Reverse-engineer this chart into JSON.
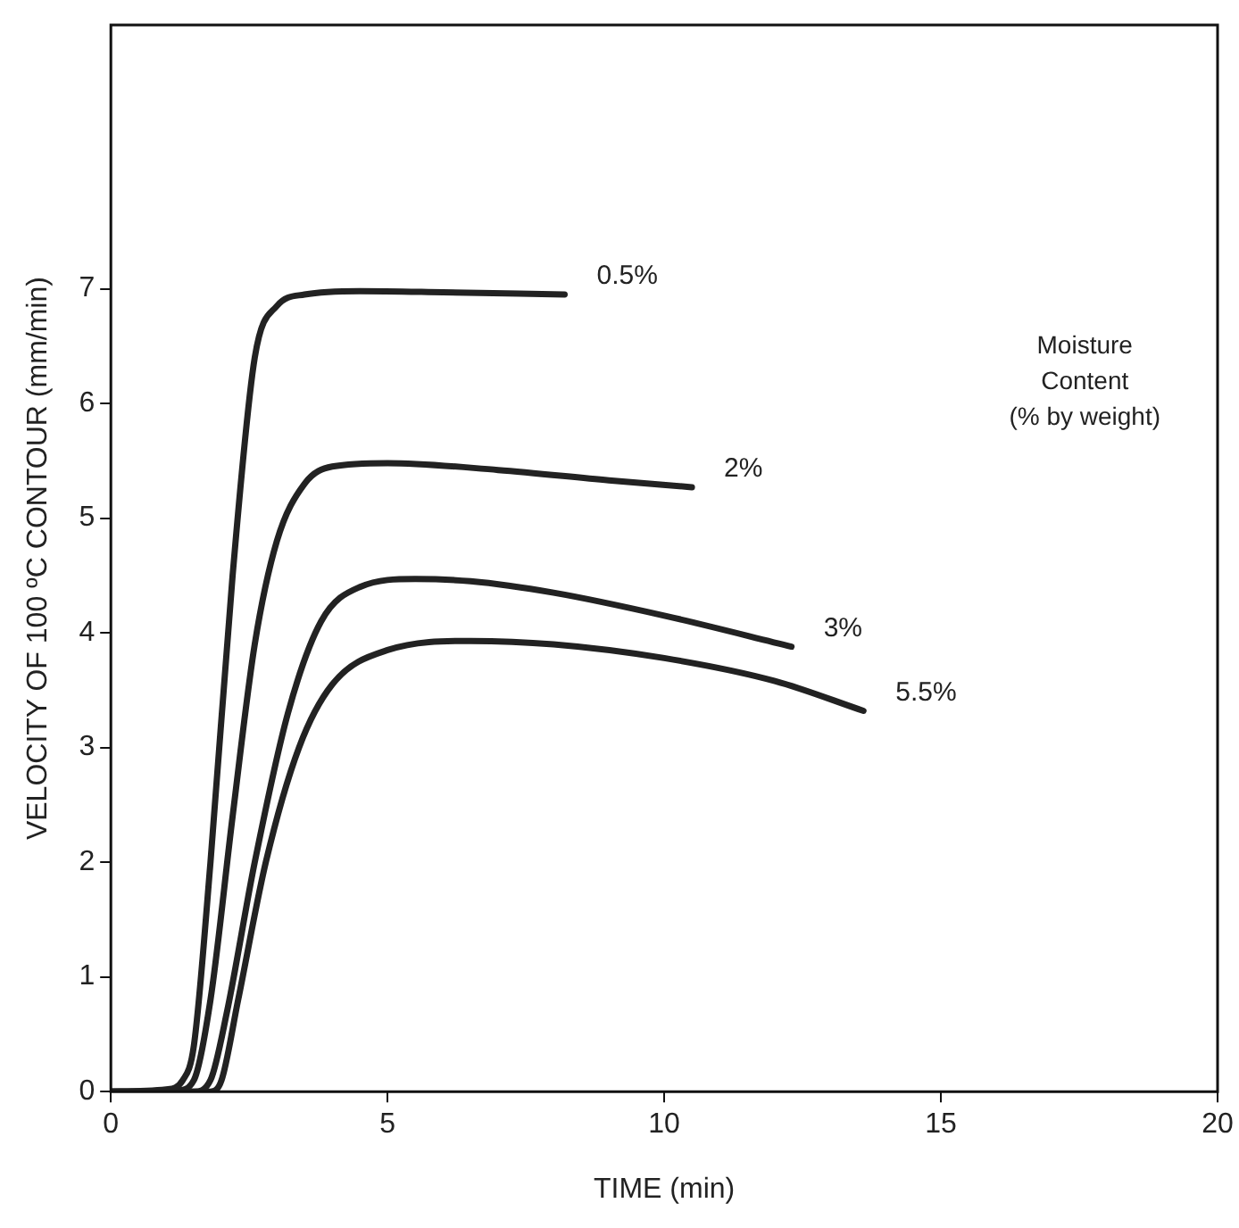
{
  "chart_data": {
    "type": "line",
    "xlabel": "TIME (min)",
    "ylabel": "VELOCITY OF 100 ºC CONTOUR (mm/min)",
    "legend_title": "Moisture\nContent\n(% by weight)",
    "xlim": [
      0,
      20
    ],
    "ylim": [
      0,
      9.3
    ],
    "xticks": [
      0,
      5,
      10,
      15,
      20
    ],
    "yticks": [
      0,
      1,
      2,
      3,
      4,
      5,
      6,
      7
    ],
    "grid": false,
    "legend": false,
    "marker": "none",
    "line_style": "solid",
    "series": [
      {
        "name": "0.5%",
        "color": "#222222",
        "x": [
          0,
          1,
          1.3,
          1.5,
          1.8,
          2.2,
          2.6,
          3,
          3.5,
          4.5,
          6,
          8.2
        ],
        "values": [
          0,
          0.02,
          0.1,
          0.4,
          2,
          4.5,
          6.4,
          6.85,
          6.95,
          6.98,
          6.97,
          6.95
        ]
      },
      {
        "name": "2%",
        "color": "#222222",
        "x": [
          0,
          1.2,
          1.5,
          1.8,
          2.2,
          2.6,
          3,
          3.5,
          4,
          5,
          7,
          9,
          10.5
        ],
        "values": [
          0,
          0.01,
          0.1,
          0.8,
          2.4,
          3.9,
          4.8,
          5.3,
          5.45,
          5.48,
          5.42,
          5.33,
          5.27
        ]
      },
      {
        "name": "3%",
        "color": "#222222",
        "x": [
          0,
          1.5,
          1.8,
          2.1,
          2.6,
          3.2,
          3.8,
          4.5,
          5.5,
          6.5,
          8,
          10,
          12.3
        ],
        "values": [
          0,
          0,
          0.1,
          0.7,
          2,
          3.3,
          4.1,
          4.4,
          4.47,
          4.45,
          4.35,
          4.15,
          3.88
        ]
      },
      {
        "name": "5.5%",
        "color": "#222222",
        "x": [
          0,
          1.8,
          2,
          2.3,
          2.8,
          3.4,
          4,
          5,
          6.5,
          8,
          10,
          12,
          13.6
        ],
        "values": [
          0,
          0,
          0.1,
          0.8,
          2,
          3,
          3.55,
          3.85,
          3.93,
          3.9,
          3.78,
          3.58,
          3.32
        ]
      }
    ]
  }
}
